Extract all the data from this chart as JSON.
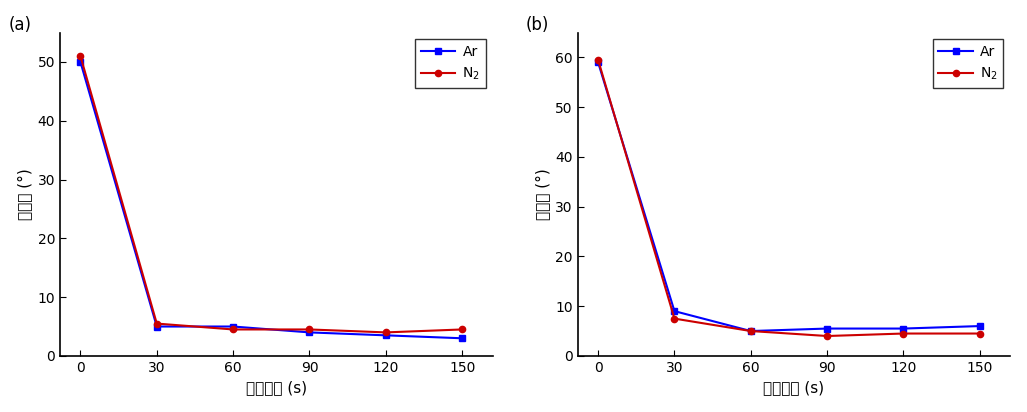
{
  "x": [
    0,
    30,
    60,
    90,
    120,
    150
  ],
  "panel_a": {
    "Ar": [
      50,
      5.0,
      5.0,
      4.0,
      3.5,
      3.0
    ],
    "N2": [
      51,
      5.5,
      4.5,
      4.5,
      4.0,
      4.5
    ]
  },
  "panel_b": {
    "Ar": [
      59,
      9.0,
      5.0,
      5.5,
      5.5,
      6.0
    ],
    "N2": [
      59.5,
      7.5,
      5.0,
      4.0,
      4.5,
      4.5
    ]
  },
  "color_ar": "#0000FF",
  "color_n2": "#CC0000",
  "xlabel": "活化时间 (s)",
  "ylabel": "接触角 (°)",
  "label_a": "(a)",
  "label_b": "(b)",
  "legend_ar": "Ar",
  "legend_n2": "N$_2$",
  "ylim_a": [
    0,
    55
  ],
  "ylim_b": [
    0,
    65
  ],
  "yticks_a": [
    0,
    10,
    20,
    30,
    40,
    50
  ],
  "yticks_b": [
    0,
    10,
    20,
    30,
    40,
    50,
    60
  ],
  "xticks": [
    0,
    30,
    60,
    90,
    120,
    150
  ]
}
